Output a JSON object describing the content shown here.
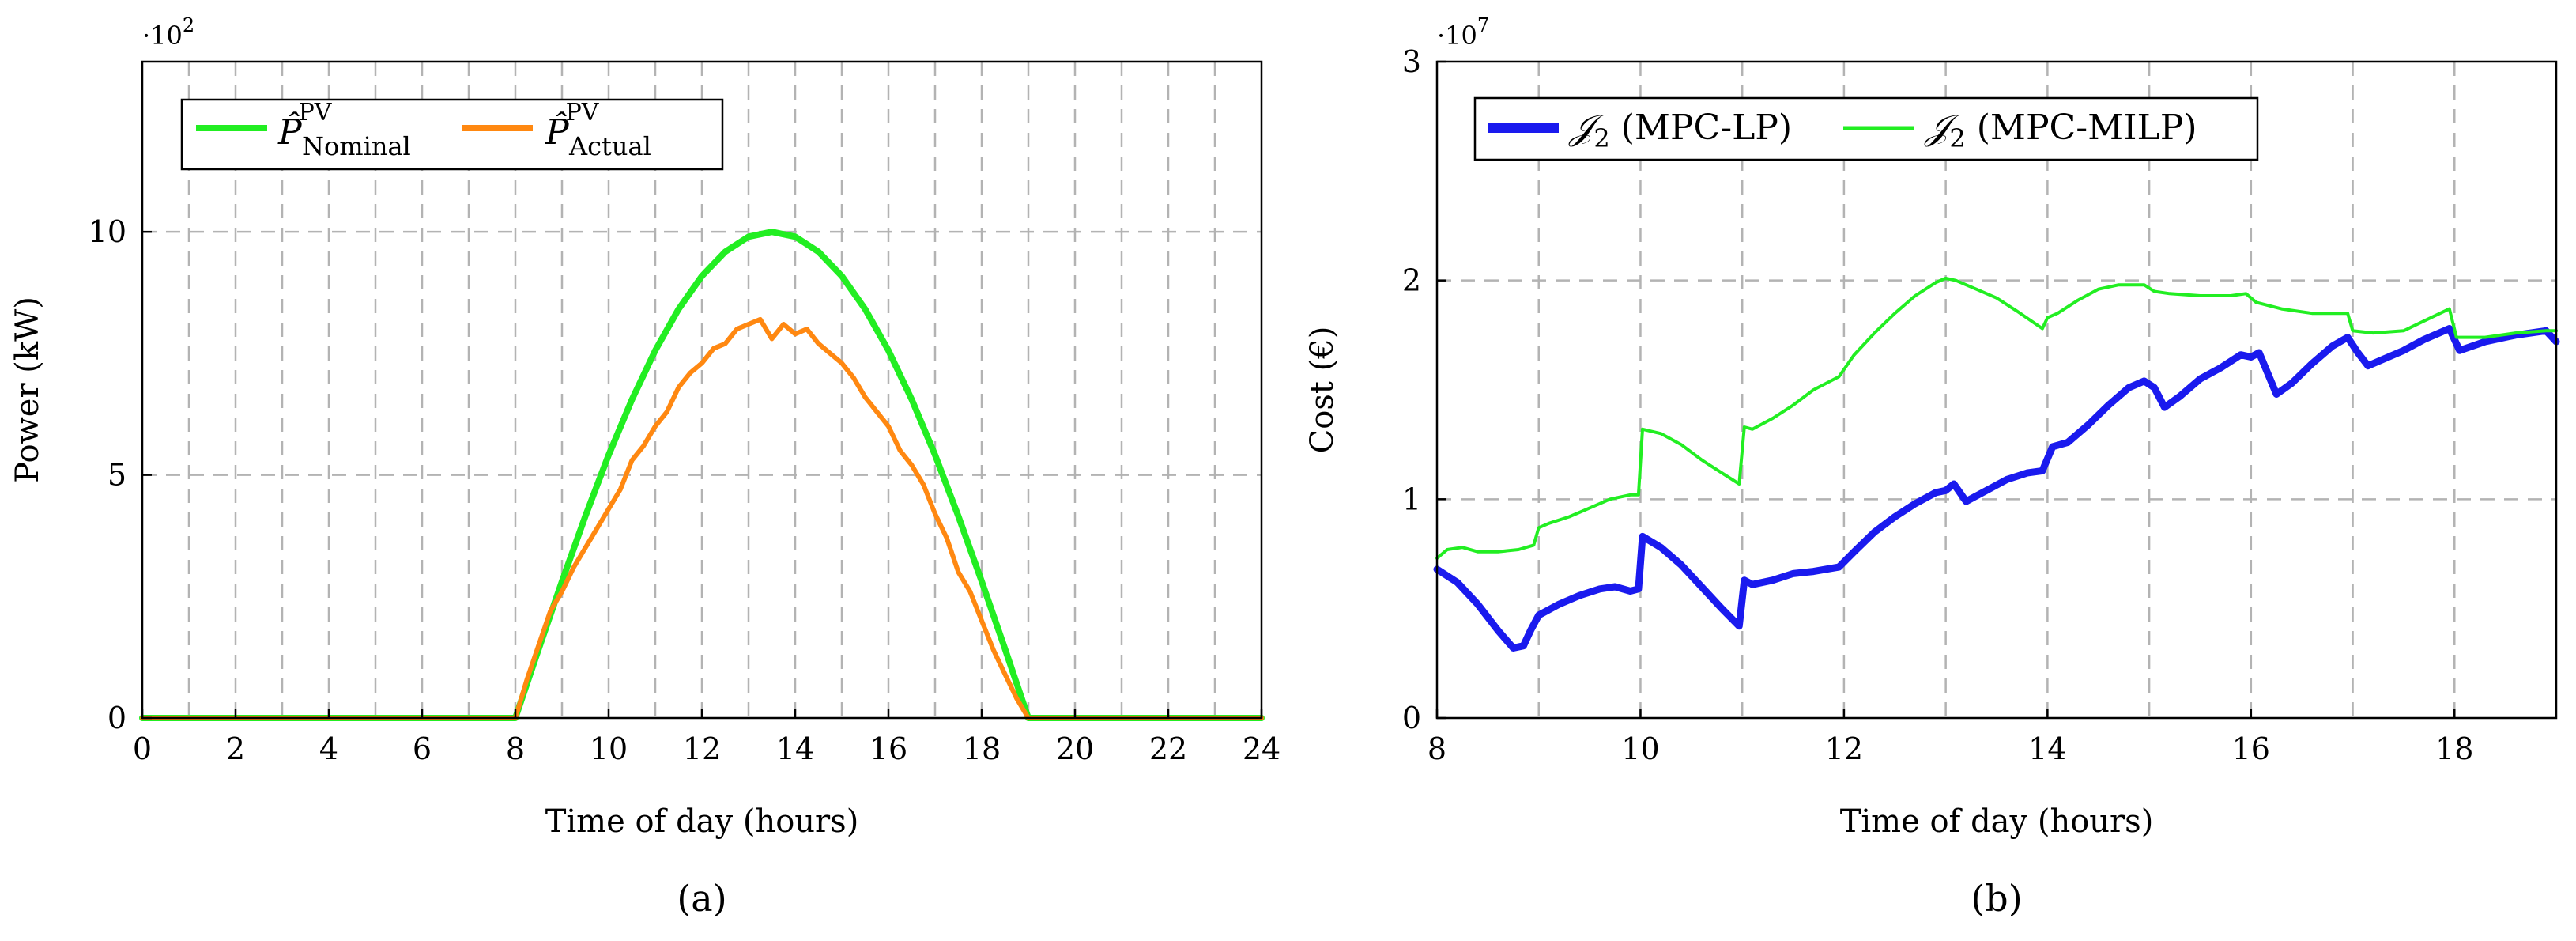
{
  "colors": {
    "nominal": "#22ee22",
    "actual": "#ff8811",
    "mpc_lp": "#1a1aee",
    "mpc_milp": "#22ee22",
    "grid": "#b3b3b3"
  },
  "chart_data": [
    {
      "type": "line",
      "panel_label": "(a)",
      "xlabel": "Time of day (hours)",
      "ylabel": "Power (kW)",
      "y_multiplier": {
        "base": "·10",
        "exponent": "2"
      },
      "xlim": [
        0,
        24
      ],
      "ylim": [
        0,
        13.5
      ],
      "xticks": [
        0,
        2,
        4,
        6,
        8,
        10,
        12,
        14,
        16,
        18,
        20,
        22,
        24
      ],
      "xtick_labels": [
        "0",
        "2",
        "4",
        "6",
        "8",
        "10",
        "12",
        "14",
        "16",
        "18",
        "20",
        "22",
        "24"
      ],
      "yticks": [
        0,
        5,
        10
      ],
      "ytick_labels": [
        "0",
        "5",
        "10"
      ],
      "x_grid": [
        1,
        2,
        3,
        4,
        5,
        6,
        7,
        8,
        9,
        10,
        11,
        12,
        13,
        14,
        15,
        16,
        17,
        18,
        19,
        20,
        21,
        22,
        23
      ],
      "y_grid": [
        5,
        10
      ],
      "legend_position": "top-left",
      "series": [
        {
          "name": "P̂ PV Nominal",
          "legend": {
            "main": "P̂",
            "sup": "PV",
            "sub": "Nominal"
          },
          "color": "#22ee22",
          "x": [
            0,
            8,
            8.5,
            9,
            9.5,
            10,
            10.5,
            11,
            11.5,
            12,
            12.5,
            13,
            13.5,
            14,
            14.5,
            15,
            15.5,
            16,
            16.5,
            17,
            17.5,
            18,
            18.5,
            19,
            24
          ],
          "y": [
            0,
            0,
            1.42,
            2.81,
            4.15,
            5.41,
            6.55,
            7.56,
            8.41,
            9.09,
            9.59,
            9.9,
            10.0,
            9.9,
            9.59,
            9.09,
            8.41,
            7.56,
            6.55,
            5.41,
            4.15,
            2.81,
            1.42,
            0,
            0
          ]
        },
        {
          "name": "P̂ PV Actual",
          "legend": {
            "main": "P̂",
            "sup": "PV",
            "sub": "Actual"
          },
          "color": "#ff8811",
          "x": [
            0,
            8,
            8.25,
            8.5,
            8.75,
            9,
            9.25,
            9.5,
            9.75,
            10,
            10.25,
            10.5,
            10.75,
            11,
            11.25,
            11.5,
            11.75,
            12,
            12.25,
            12.5,
            12.75,
            13,
            13.25,
            13.5,
            13.75,
            14,
            14.25,
            14.5,
            14.75,
            15,
            15.25,
            15.5,
            15.75,
            16,
            16.25,
            16.5,
            16.75,
            17,
            17.25,
            17.5,
            17.75,
            18,
            18.25,
            18.5,
            18.75,
            19,
            24
          ],
          "y": [
            0,
            0,
            0.8,
            1.5,
            2.2,
            2.6,
            3.1,
            3.5,
            3.9,
            4.3,
            4.7,
            5.3,
            5.6,
            6.0,
            6.3,
            6.8,
            7.1,
            7.3,
            7.6,
            7.7,
            8.0,
            8.1,
            8.2,
            7.8,
            8.1,
            7.9,
            8.0,
            7.7,
            7.5,
            7.3,
            7.0,
            6.6,
            6.3,
            6.0,
            5.5,
            5.2,
            4.8,
            4.2,
            3.7,
            3.0,
            2.6,
            2.0,
            1.4,
            0.9,
            0.4,
            0,
            0
          ]
        }
      ]
    },
    {
      "type": "line",
      "panel_label": "(b)",
      "xlabel": "Time of day (hours)",
      "ylabel": "Cost (€)",
      "y_multiplier": {
        "base": "·10",
        "exponent": "7"
      },
      "xlim": [
        8,
        19
      ],
      "ylim": [
        0,
        3
      ],
      "xticks": [
        8,
        10,
        12,
        14,
        16,
        18
      ],
      "xtick_labels": [
        "8",
        "10",
        "12",
        "14",
        "16",
        "18"
      ],
      "yticks": [
        0,
        1,
        2,
        3
      ],
      "ytick_labels": [
        "0",
        "1",
        "2",
        "3"
      ],
      "x_grid": [
        9,
        10,
        11,
        12,
        13,
        14,
        15,
        16,
        17,
        18
      ],
      "y_grid": [
        1,
        2
      ],
      "legend_position": "top-left",
      "series": [
        {
          "name": "J2 (MPC-LP)",
          "legend": {
            "main": "𝒥",
            "sub": "2",
            "rest": " (MPC-LP)"
          },
          "color": "#1a1aee",
          "x": [
            8,
            8.2,
            8.4,
            8.6,
            8.75,
            8.85,
            8.92,
            9,
            9.2,
            9.4,
            9.6,
            9.75,
            9.9,
            9.98,
            10.02,
            10.2,
            10.4,
            10.6,
            10.8,
            10.97,
            11.02,
            11.1,
            11.3,
            11.5,
            11.7,
            11.95,
            12.1,
            12.3,
            12.5,
            12.7,
            12.9,
            13.0,
            13.08,
            13.2,
            13.4,
            13.6,
            13.8,
            13.95,
            14.05,
            14.2,
            14.4,
            14.6,
            14.8,
            14.95,
            15.05,
            15.15,
            15.3,
            15.5,
            15.7,
            15.9,
            16.0,
            16.08,
            16.25,
            16.4,
            16.6,
            16.8,
            16.95,
            17.05,
            17.15,
            17.3,
            17.5,
            17.7,
            17.95,
            18.05,
            18.3,
            18.6,
            18.9,
            19.0
          ],
          "y": [
            0.68,
            0.62,
            0.52,
            0.4,
            0.32,
            0.33,
            0.4,
            0.47,
            0.52,
            0.56,
            0.59,
            0.6,
            0.58,
            0.59,
            0.83,
            0.78,
            0.7,
            0.6,
            0.5,
            0.42,
            0.63,
            0.61,
            0.63,
            0.66,
            0.67,
            0.69,
            0.76,
            0.85,
            0.92,
            0.98,
            1.03,
            1.04,
            1.07,
            0.99,
            1.04,
            1.09,
            1.12,
            1.13,
            1.24,
            1.26,
            1.34,
            1.43,
            1.51,
            1.54,
            1.51,
            1.42,
            1.47,
            1.55,
            1.6,
            1.66,
            1.65,
            1.67,
            1.48,
            1.53,
            1.62,
            1.7,
            1.74,
            1.67,
            1.61,
            1.64,
            1.68,
            1.73,
            1.78,
            1.68,
            1.72,
            1.75,
            1.77,
            1.72
          ]
        },
        {
          "name": "J2 (MPC-MILP)",
          "legend": {
            "main": "𝒥",
            "sub": "2",
            "rest": " (MPC-MILP)"
          },
          "color": "#22ee22",
          "x": [
            8,
            8.1,
            8.25,
            8.4,
            8.6,
            8.8,
            8.95,
            9.0,
            9.1,
            9.3,
            9.5,
            9.7,
            9.9,
            9.98,
            10.02,
            10.2,
            10.4,
            10.6,
            10.8,
            10.97,
            11.02,
            11.1,
            11.3,
            11.5,
            11.7,
            11.95,
            12.1,
            12.3,
            12.5,
            12.7,
            12.9,
            13.0,
            13.1,
            13.3,
            13.5,
            13.7,
            13.95,
            14.0,
            14.1,
            14.3,
            14.5,
            14.7,
            14.95,
            15.05,
            15.2,
            15.5,
            15.8,
            15.95,
            16.05,
            16.3,
            16.6,
            16.95,
            17.0,
            17.2,
            17.5,
            17.95,
            18.02,
            18.3,
            18.6,
            18.9,
            19.0
          ],
          "y": [
            0.73,
            0.77,
            0.78,
            0.76,
            0.76,
            0.77,
            0.79,
            0.87,
            0.89,
            0.92,
            0.96,
            1.0,
            1.02,
            1.02,
            1.32,
            1.3,
            1.25,
            1.18,
            1.12,
            1.07,
            1.33,
            1.32,
            1.37,
            1.43,
            1.5,
            1.56,
            1.66,
            1.76,
            1.85,
            1.93,
            1.99,
            2.01,
            2.0,
            1.96,
            1.92,
            1.86,
            1.78,
            1.83,
            1.85,
            1.91,
            1.96,
            1.98,
            1.98,
            1.95,
            1.94,
            1.93,
            1.93,
            1.94,
            1.9,
            1.87,
            1.85,
            1.85,
            1.77,
            1.76,
            1.77,
            1.87,
            1.74,
            1.74,
            1.76,
            1.77,
            1.77
          ]
        }
      ]
    }
  ]
}
